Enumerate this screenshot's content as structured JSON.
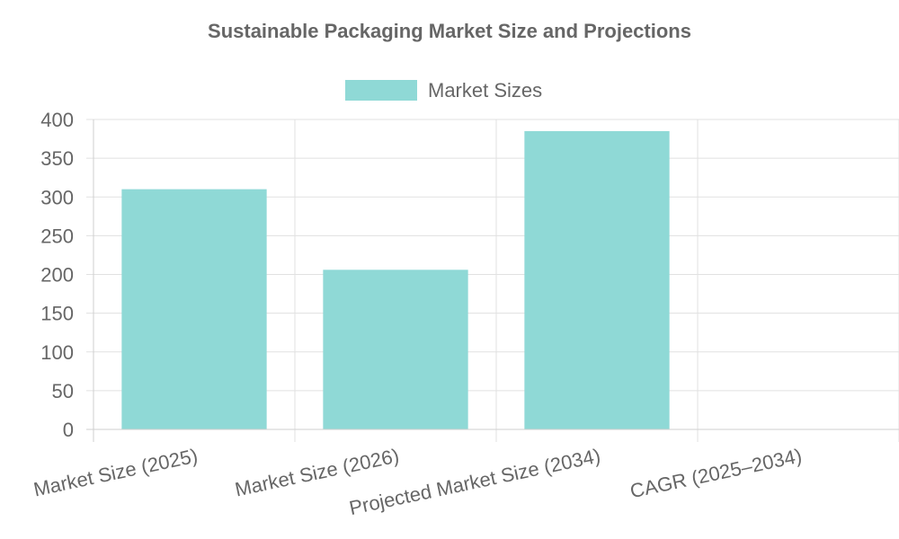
{
  "chart_data": {
    "type": "bar",
    "title": "Sustainable Packaging Market Size and Projections",
    "categories": [
      "Market Size (2025)",
      "Market Size (2026)",
      "Projected Market Size (2034)",
      "CAGR (2025–2034)"
    ],
    "series": [
      {
        "name": "Market Sizes",
        "values": [
          310,
          206,
          385,
          0
        ],
        "color": "#8fd9d6"
      }
    ],
    "ylim": [
      0,
      400
    ],
    "yticks": [
      0,
      50,
      100,
      150,
      200,
      250,
      300,
      350,
      400
    ],
    "grid": true,
    "legend_position": "top-center"
  }
}
